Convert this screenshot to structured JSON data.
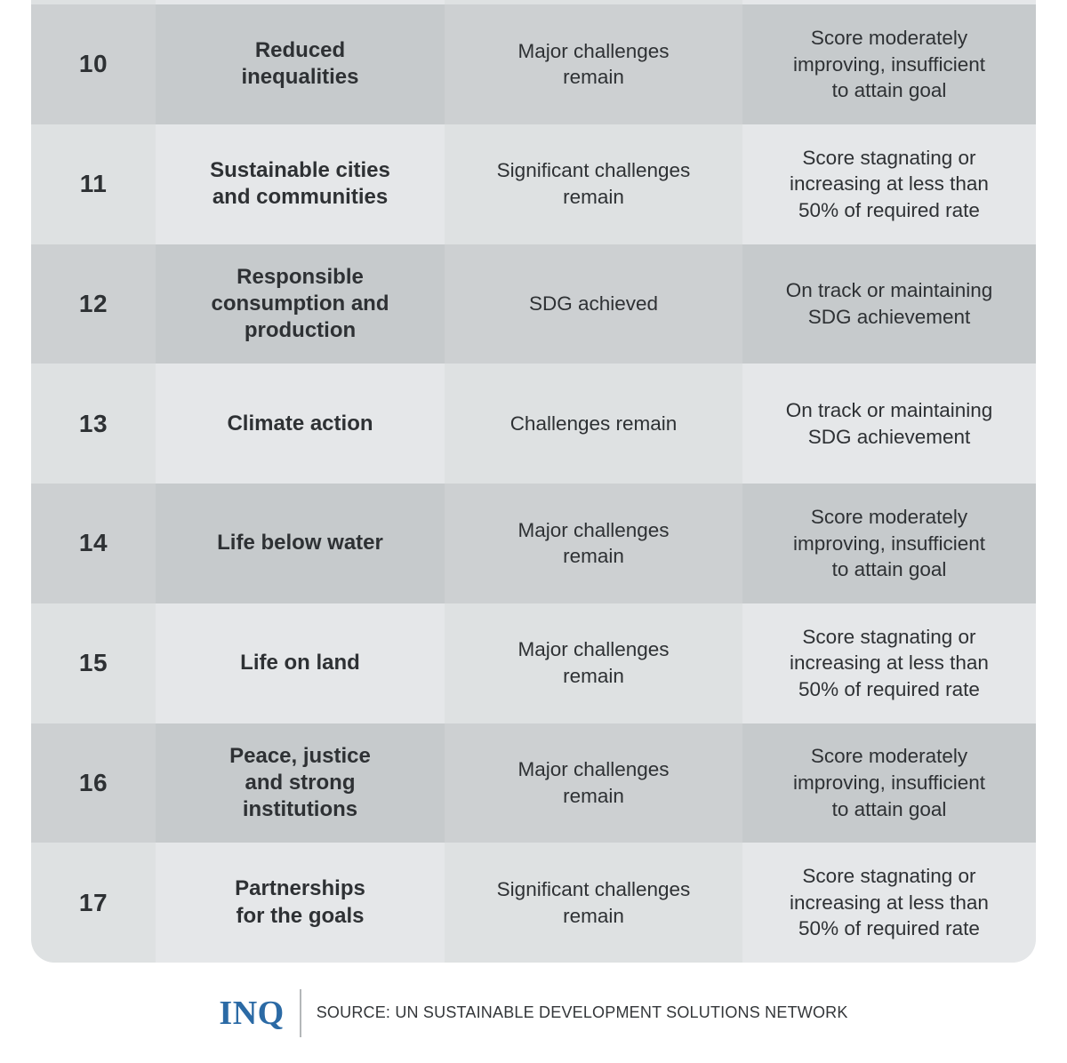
{
  "colors": {
    "brand_blue": "#2b6aa5",
    "row_dark_a": "#cdd0d2",
    "row_dark_b": "#c6cacc",
    "row_light_a": "#dee1e2",
    "row_light_b": "#e5e7e9",
    "text": "#2e3134"
  },
  "chart_data": {
    "type": "table",
    "rows": [
      [
        "10",
        "Reduced inequalities",
        "Major challenges remain",
        "Score moderately improving, insufficient to attain goal"
      ],
      [
        "11",
        "Sustainable cities and communities",
        "Significant challenges remain",
        "Score stagnating or increasing at less than 50% of required rate"
      ],
      [
        "12",
        "Responsible consumption and production",
        "SDG achieved",
        "On track or maintaining SDG achievement"
      ],
      [
        "13",
        "Climate action",
        "Challenges remain",
        "On track or maintaining SDG achievement"
      ],
      [
        "14",
        "Life below water",
        "Major challenges remain",
        "Score moderately improving, insufficient to attain goal"
      ],
      [
        "15",
        "Life on land",
        "Major challenges remain",
        "Score stagnating or increasing at less than 50% of required rate"
      ],
      [
        "16",
        "Peace, justice and strong institutions",
        "Major challenges remain",
        "Score moderately improving, insufficient to attain goal"
      ],
      [
        "17",
        "Partnerships for the goals",
        "Significant challenges remain",
        "Score stagnating or increasing at less than 50% of required rate"
      ]
    ],
    "source": "SOURCE: UN SUSTAINABLE DEVELOPMENT SOLUTIONS NETWORK"
  },
  "table": {
    "rows": [
      {
        "num": "10",
        "goal": "Reduced\ninequalities",
        "status": "Major challenges\nremain",
        "trend": "Score moderately\nimproving, insufficient\nto attain goal"
      },
      {
        "num": "11",
        "goal": "Sustainable cities\nand communities",
        "status": "Significant challenges\nremain",
        "trend": "Score stagnating or\nincreasing at less than\n50% of required rate"
      },
      {
        "num": "12",
        "goal": "Responsible\nconsumption and\nproduction",
        "status": "SDG achieved",
        "trend": "On track or maintaining\nSDG achievement"
      },
      {
        "num": "13",
        "goal": "Climate action",
        "status": "Challenges remain",
        "trend": "On track or maintaining\nSDG achievement"
      },
      {
        "num": "14",
        "goal": "Life below water",
        "status": "Major challenges\nremain",
        "trend": "Score moderately\nimproving, insufficient\nto attain goal"
      },
      {
        "num": "15",
        "goal": "Life on land",
        "status": "Major challenges\nremain",
        "trend": "Score stagnating or\nincreasing at less than\n50% of required rate"
      },
      {
        "num": "16",
        "goal": "Peace, justice\nand strong\ninstitutions",
        "status": "Major challenges\nremain",
        "trend": "Score moderately\nimproving, insufficient\nto attain goal"
      },
      {
        "num": "17",
        "goal": "Partnerships\nfor the goals",
        "status": "Significant challenges\nremain",
        "trend": "Score stagnating or\nincreasing at less than\n50% of required rate"
      }
    ]
  },
  "footer": {
    "logo": "INQ",
    "source": "SOURCE: UN SUSTAINABLE DEVELOPMENT SOLUTIONS NETWORK"
  }
}
